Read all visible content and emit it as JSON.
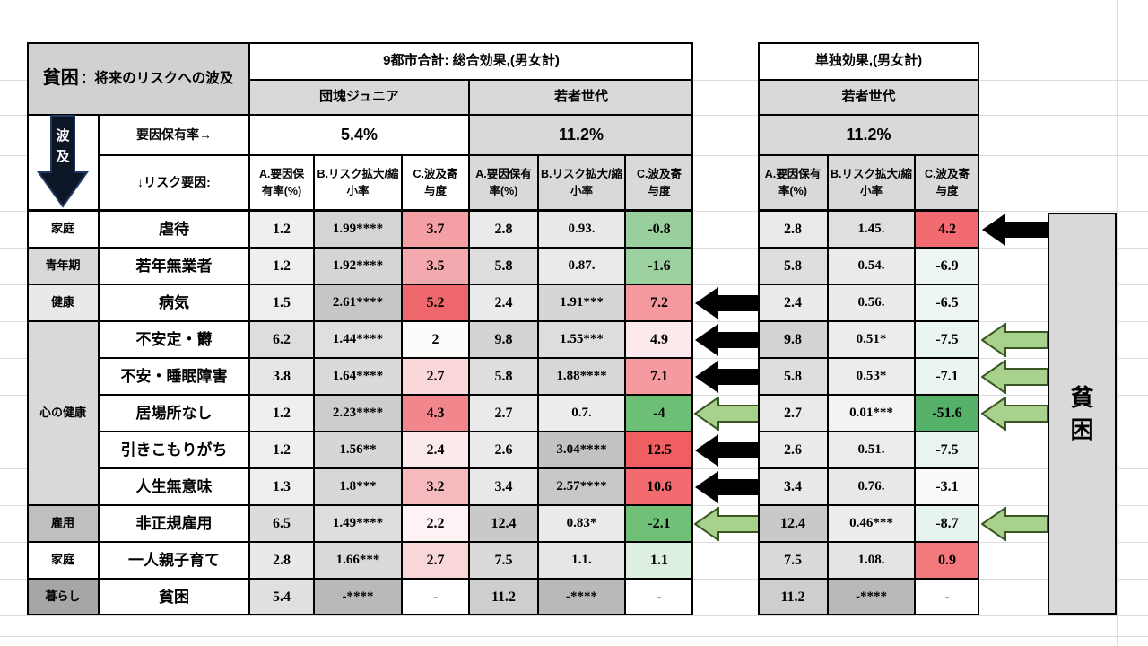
{
  "chart_data": {
    "type": "table",
    "title": "貧困：将来のリスクへの波及",
    "labels": {
      "title_main": "貧困",
      "title_rest": "：将来のリスクへの波及",
      "factor_rate": "要因保有率→",
      "risk_factor": "↓リスク要因:",
      "spillover_chars": [
        "波",
        "及"
      ],
      "target_chars": [
        "貧",
        "困"
      ]
    },
    "group_headers": {
      "total_effect": "9都市合計: 総合効果,(男女計)",
      "solo_effect": "単独効果,(男女計)"
    },
    "subheaders": {
      "dankai_junior": "団塊ジュニア",
      "youth_total": "若者世代",
      "youth_solo": "若者世代"
    },
    "factor_rates": {
      "dankai_junior": "5.4%",
      "youth_total": "11.2%",
      "youth_solo": "11.2%"
    },
    "columns": [
      "A.要因保有率(%)",
      "B.リスク拡大/縮小率",
      "C.波及寄与度"
    ],
    "row_labels": [
      "虐待",
      "若年無業者",
      "病気",
      "不安定・欝",
      "不安・睡眠障害",
      "居場所なし",
      "引きこもりがち",
      "人生無意味",
      "非正規雇用",
      "一人親子育て",
      "貧困"
    ],
    "row_categories": [
      {
        "label": "家庭",
        "row": 0,
        "span": 1
      },
      {
        "label": "青年期",
        "row": 1,
        "span": 1
      },
      {
        "label": "健康",
        "row": 2,
        "span": 1
      },
      {
        "label": "心の健康",
        "row": 3,
        "span": 5
      },
      {
        "label": "雇用",
        "row": 8,
        "span": 1
      },
      {
        "label": "家庭",
        "row": 9,
        "span": 1
      },
      {
        "label": "暮らし",
        "row": 10,
        "span": 1
      }
    ],
    "series": {
      "dankai_junior": {
        "A": [
          "1.2",
          "1.2",
          "1.5",
          "6.2",
          "3.8",
          "1.2",
          "1.2",
          "1.3",
          "6.5",
          "2.8",
          "5.4"
        ],
        "B": [
          "1.99****",
          "1.92****",
          "2.61****",
          "1.44****",
          "1.64****",
          "2.23****",
          "1.56**",
          "1.8***",
          "1.49****",
          "1.66***",
          "-****"
        ],
        "C": [
          "3.7",
          "3.5",
          "5.2",
          "2",
          "2.7",
          "4.3",
          "2.4",
          "3.2",
          "2.2",
          "2.7",
          "-"
        ]
      },
      "youth_total": {
        "A": [
          "2.8",
          "5.8",
          "2.4",
          "9.8",
          "5.8",
          "2.7",
          "2.6",
          "3.4",
          "12.4",
          "7.5",
          "11.2"
        ],
        "B": [
          "0.93.",
          "0.87.",
          "1.91***",
          "1.55***",
          "1.88****",
          "0.7.",
          "3.04****",
          "2.57****",
          "0.83*",
          "1.1.",
          "-****"
        ],
        "C": [
          "-0.8",
          "-1.6",
          "7.2",
          "4.9",
          "7.1",
          "-4",
          "12.5",
          "10.6",
          "-2.1",
          "1.1",
          "-"
        ]
      },
      "youth_solo": {
        "A": [
          "2.8",
          "5.8",
          "2.4",
          "9.8",
          "5.8",
          "2.7",
          "2.6",
          "3.4",
          "12.4",
          "7.5",
          "11.2"
        ],
        "B": [
          "1.45.",
          "0.54.",
          "0.56.",
          "0.51*",
          "0.53*",
          "0.01***",
          "0.51.",
          "0.76.",
          "0.46***",
          "1.08.",
          "-****"
        ],
        "C": [
          "4.2",
          "-6.9",
          "-6.5",
          "-7.5",
          "-7.1",
          "-51.6",
          "-7.5",
          "-3.1",
          "-8.7",
          "0.9",
          "-"
        ]
      }
    },
    "arrows": {
      "between_tables": [
        {
          "row": 2,
          "color": "black"
        },
        {
          "row": 3,
          "color": "black"
        },
        {
          "row": 4,
          "color": "black"
        },
        {
          "row": 5,
          "color": "green"
        },
        {
          "row": 6,
          "color": "black"
        },
        {
          "row": 7,
          "color": "black"
        },
        {
          "row": 8,
          "color": "green"
        }
      ],
      "from_poverty_box": [
        {
          "row": 0,
          "color": "black"
        },
        {
          "row": 3,
          "color": "green"
        },
        {
          "row": 4,
          "color": "green"
        },
        {
          "row": 5,
          "color": "green"
        },
        {
          "row": 8,
          "color": "green"
        }
      ]
    }
  },
  "styles": {
    "title_gray": "#d1d1d1",
    "header_gray": "#d9d9d9",
    "box_gray": "#d9d9d9",
    "gridline": "#dcdcdc",
    "arrow_black": "#000000",
    "arrow_green_fill": "#a9d18e",
    "arrow_green_stroke": "#385723",
    "spill_arrow_fill": "#0d1626",
    "spill_arrow_stroke": "#1f3864",
    "category_bg": [
      "#ffffff",
      "#d9d9d9",
      "#e9e9e9",
      "#d9d9d9",
      "#bfbfbf",
      "#ffffff",
      "#a6a6a6"
    ],
    "dankai_junior": {
      "A_bg": [
        "#efefef",
        "#efefef",
        "#eeeeee",
        "#dddddd",
        "#e6e6e6",
        "#efefef",
        "#efefef",
        "#eeeeee",
        "#dcdcdc",
        "#e9e9e9",
        "#e0e0e0"
      ],
      "B_bg": [
        "#d4d4d4",
        "#d5d5d5",
        "#c6c6c6",
        "#dfdfdf",
        "#dadada",
        "#cdcdcd",
        "#d6d6d6",
        "#d7d7d7",
        "#dedede",
        "#d9d9d9",
        "#b9b9b9"
      ],
      "C_bg": [
        "#f39fa4",
        "#f4a9ae",
        "#ee676d",
        "#fefbfb",
        "#f9d6d8",
        "#f1878c",
        "#fbeaeb",
        "#f6b9bd",
        "#fdf3f4",
        "#f9d6d8",
        "#ffffff"
      ]
    },
    "youth_total": {
      "A_bg": [
        "#eaeaea",
        "#dedede",
        "#ebebeb",
        "#d3d3d3",
        "#dedede",
        "#eaeaea",
        "#ebebeb",
        "#e8e8e8",
        "#c9c9c9",
        "#dadada",
        "#cecece"
      ],
      "B_bg": [
        "#e9e9e9",
        "#eaeaea",
        "#d6d6d6",
        "#dddddd",
        "#d7d7d7",
        "#ededed",
        "#c2c2c2",
        "#c8c8c8",
        "#ebebeb",
        "#e6e6e6",
        "#b9b9b9"
      ],
      "C_bg": [
        "#98cf9c",
        "#9cd19f",
        "#f5999e",
        "#fce9eb",
        "#f59a9f",
        "#6dbf76",
        "#f15e62",
        "#f36b6f",
        "#70c078",
        "#ddefdf",
        "#ffffff"
      ]
    },
    "youth_solo": {
      "A_bg": [
        "#eaeaea",
        "#dedede",
        "#ebebeb",
        "#d3d3d3",
        "#dedede",
        "#eaeaea",
        "#ebebeb",
        "#e8e8e8",
        "#c9c9c9",
        "#dadada",
        "#cecece"
      ],
      "B_bg": [
        "#dfdfdf",
        "#ebebeb",
        "#ebebeb",
        "#ececec",
        "#ececec",
        "#f3f3f3",
        "#ececec",
        "#e8e8e8",
        "#ededed",
        "#e4e4e4",
        "#b9b9b9"
      ],
      "C_bg": [
        "#f16b70",
        "#edf6f2",
        "#edf6f2",
        "#eaf5ef",
        "#ebf5f0",
        "#55b168",
        "#e9f4ee",
        "#f8fbfa",
        "#e7f3ed",
        "#f4797d",
        "#ffffff"
      ]
    }
  }
}
